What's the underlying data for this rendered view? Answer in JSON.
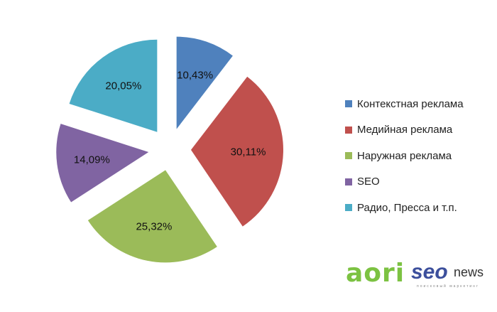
{
  "chart_data": {
    "type": "pie",
    "exploded": true,
    "categories": [
      "Контекстная реклама",
      "Медийная реклама",
      "Наружная реклама",
      "SEO",
      "Радио, Пресса и т.п."
    ],
    "values": [
      10.43,
      30.11,
      25.32,
      14.09,
      20.05
    ],
    "labels": [
      "10,43%",
      "30,11%",
      "25,32%",
      "14,09%",
      "20,05%"
    ],
    "colors": [
      "#4f81bd",
      "#c0504d",
      "#9bbb59",
      "#8064a2",
      "#4bacc6"
    ],
    "legend_position": "right"
  },
  "logos": {
    "aori": "aori",
    "seonews_seo": "seo",
    "seonews_news": "news",
    "seonews_tagline": "поисковый маркетинг"
  }
}
